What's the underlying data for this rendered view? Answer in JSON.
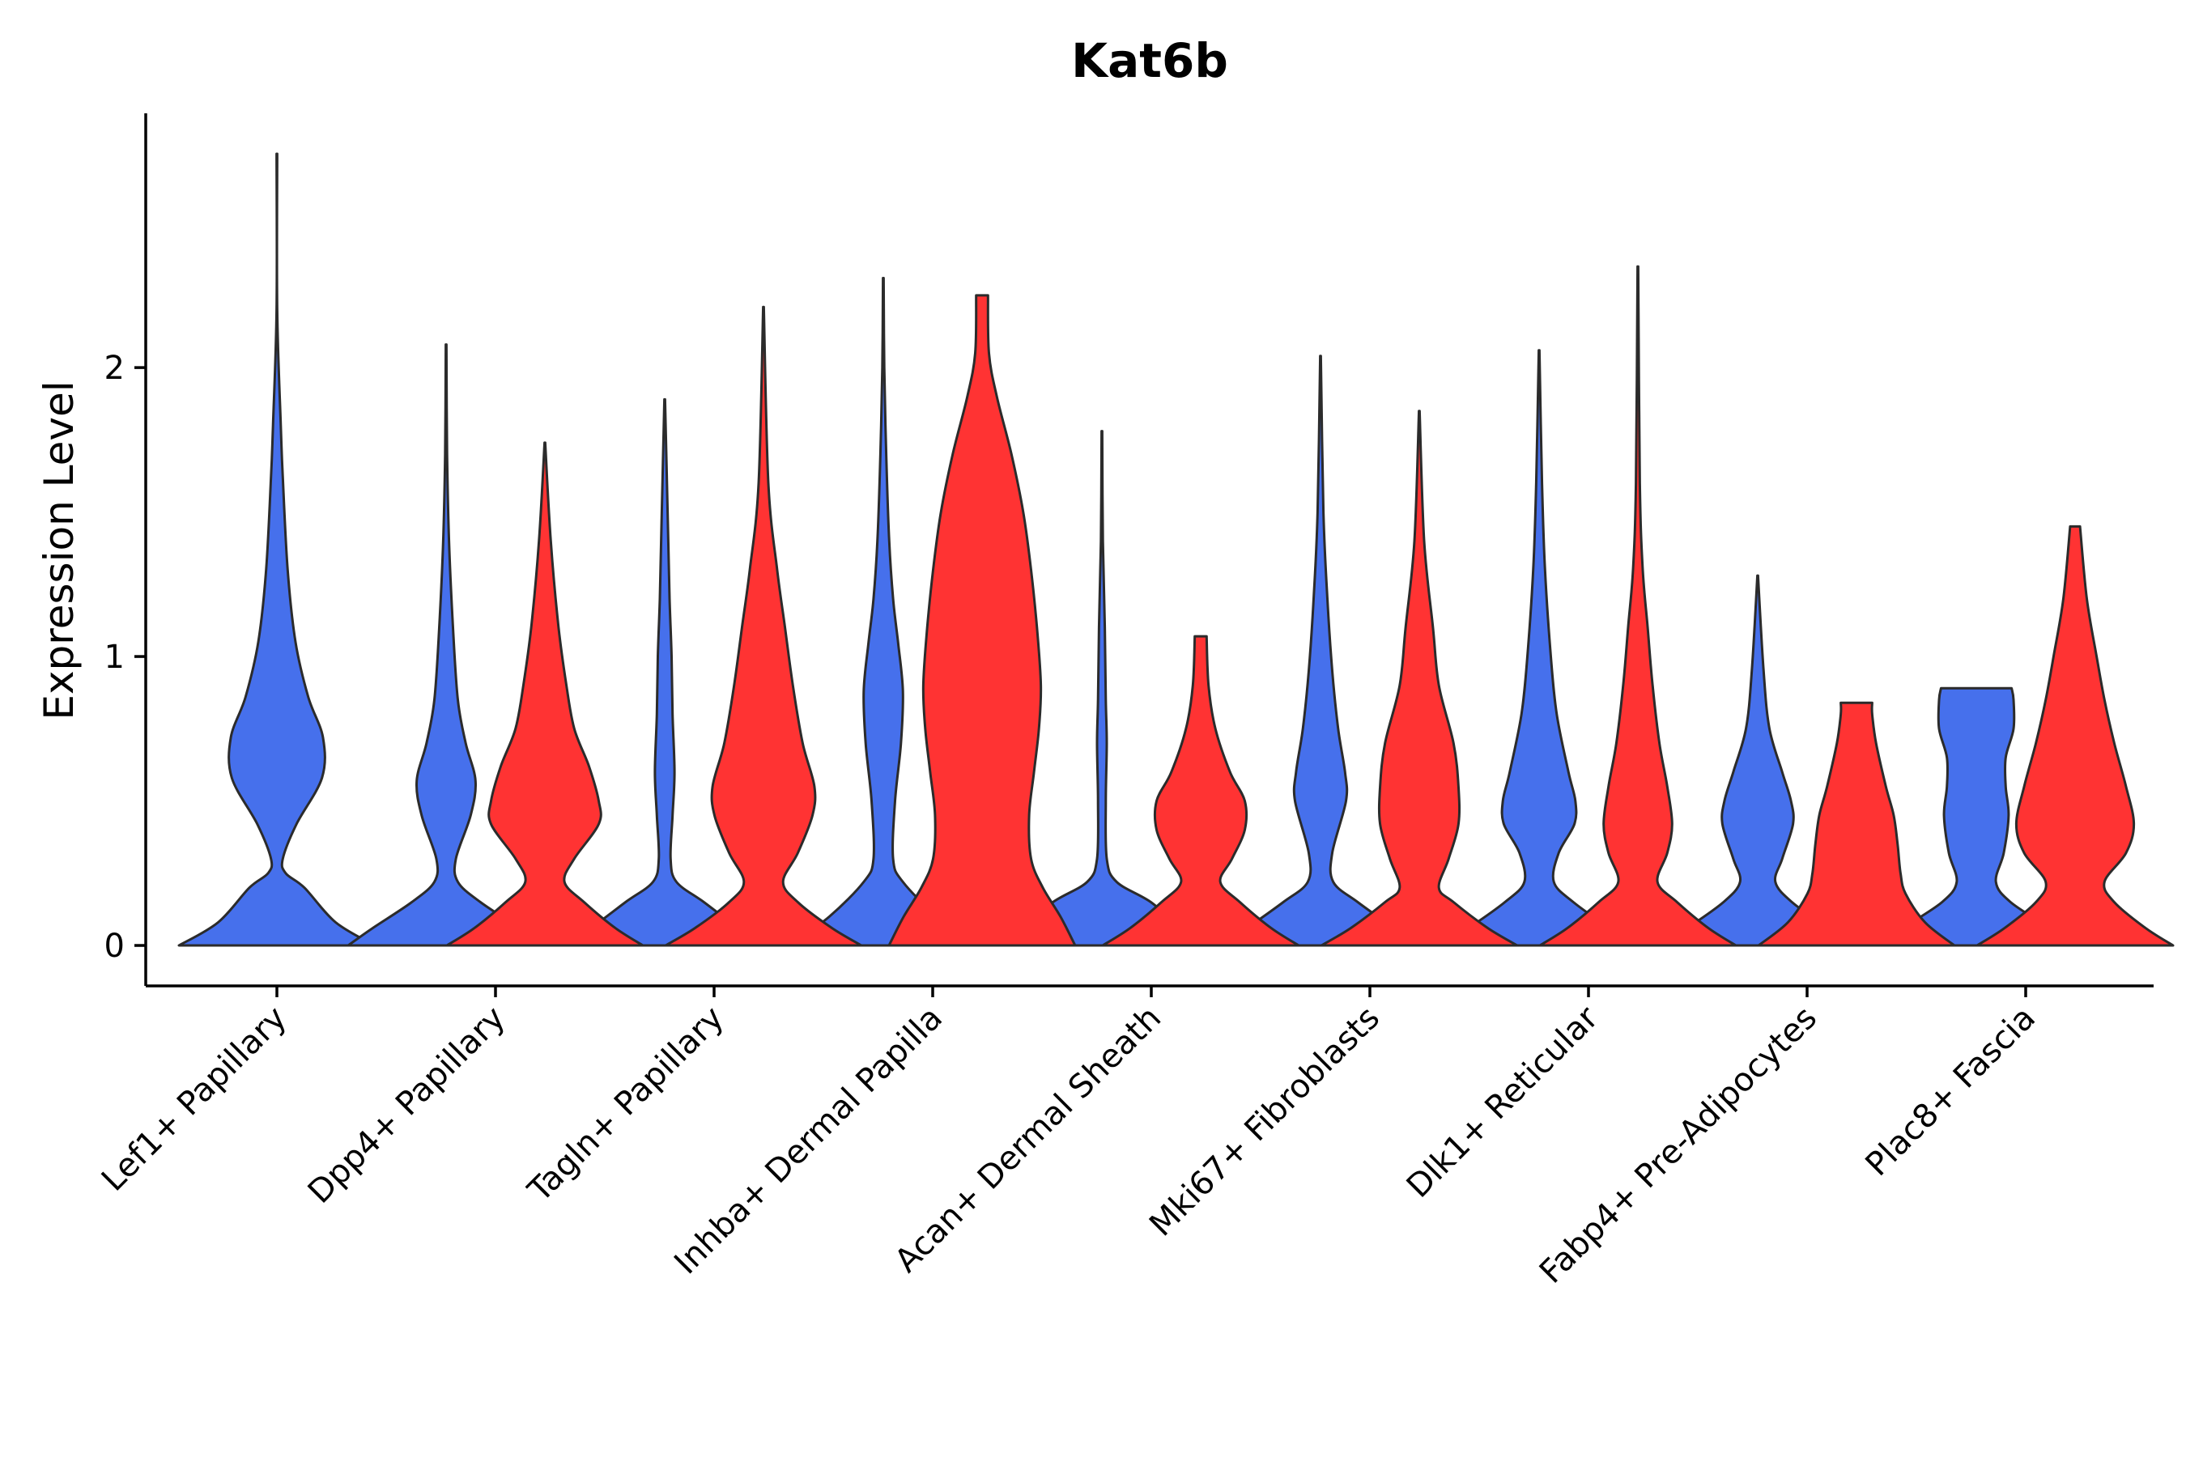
{
  "chart_data": {
    "type": "violin",
    "title": "Kat6b",
    "xlabel": "",
    "ylabel": "Expression Level",
    "ylim": [
      -0.14,
      2.88
    ],
    "yticks": [
      0,
      1,
      2
    ],
    "legend": "none",
    "grid": false,
    "categories": [
      "Lef1+ Papillary",
      "Dpp4+ Papillary",
      "Tagln+ Papillary",
      "Inhba+ Dermal Papilla",
      "Acan+ Dermal Sheath",
      "Mki67+ Fibroblasts",
      "Dlk1+ Reticular",
      "Fabp4+ Pre-Adipocytes",
      "Plac8+ Fascia"
    ],
    "series": [
      {
        "color": "#4670EC",
        "violins": [
          {
            "category": "Lef1+ Papillary",
            "max": 2.74,
            "profile": [
              [
                0,
                1.0
              ],
              [
                0.08,
                0.6
              ],
              [
                0.2,
                0.28
              ],
              [
                0.25,
                0.09
              ],
              [
                0.3,
                0.06
              ],
              [
                0.42,
                0.2
              ],
              [
                0.58,
                0.46
              ],
              [
                0.72,
                0.47
              ],
              [
                0.86,
                0.32
              ],
              [
                1.05,
                0.19
              ],
              [
                1.3,
                0.11
              ],
              [
                1.62,
                0.06
              ],
              [
                1.8,
                0.04
              ],
              [
                2.2,
                0.003
              ],
              [
                2.74,
                0.003
              ]
            ]
          },
          {
            "category": "Dpp4+ Papillary",
            "max": 2.08,
            "profile": [
              [
                0,
                1.0
              ],
              [
                0.06,
                0.75
              ],
              [
                0.15,
                0.35
              ],
              [
                0.22,
                0.12
              ],
              [
                0.3,
                0.1
              ],
              [
                0.45,
                0.25
              ],
              [
                0.57,
                0.3
              ],
              [
                0.7,
                0.2
              ],
              [
                0.85,
                0.12
              ],
              [
                1.1,
                0.07
              ],
              [
                1.4,
                0.03
              ],
              [
                1.7,
                0.01
              ],
              [
                2.08,
                0.003
              ]
            ]
          },
          {
            "category": "Tagln+ Papillary",
            "max": 1.89,
            "profile": [
              [
                0,
                1.0
              ],
              [
                0.06,
                0.75
              ],
              [
                0.15,
                0.4
              ],
              [
                0.22,
                0.12
              ],
              [
                0.3,
                0.06
              ],
              [
                0.45,
                0.08
              ],
              [
                0.6,
                0.1
              ],
              [
                0.8,
                0.08
              ],
              [
                1.0,
                0.07
              ],
              [
                1.2,
                0.05
              ],
              [
                1.5,
                0.03
              ],
              [
                1.89,
                0.003
              ]
            ]
          },
          {
            "category": "Inhba+ Dermal Papilla",
            "max": 2.31,
            "profile": [
              [
                0,
                0.95
              ],
              [
                0.1,
                0.55
              ],
              [
                0.22,
                0.2
              ],
              [
                0.3,
                0.1
              ],
              [
                0.5,
                0.12
              ],
              [
                0.7,
                0.18
              ],
              [
                0.88,
                0.2
              ],
              [
                1.05,
                0.15
              ],
              [
                1.2,
                0.1
              ],
              [
                1.4,
                0.06
              ],
              [
                1.7,
                0.03
              ],
              [
                2.0,
                0.01
              ],
              [
                2.31,
                0.003
              ]
            ]
          },
          {
            "category": "Acan+ Dermal Sheath",
            "max": 1.78,
            "profile": [
              [
                0,
                1.0
              ],
              [
                0.06,
                0.8
              ],
              [
                0.15,
                0.5
              ],
              [
                0.22,
                0.15
              ],
              [
                0.3,
                0.05
              ],
              [
                0.5,
                0.04
              ],
              [
                0.7,
                0.05
              ],
              [
                0.85,
                0.04
              ],
              [
                1.1,
                0.03
              ],
              [
                1.4,
                0.01
              ],
              [
                1.78,
                0.003
              ]
            ]
          },
          {
            "category": "Mki67+ Fibroblasts",
            "max": 2.04,
            "profile": [
              [
                0,
                1.0
              ],
              [
                0.06,
                0.75
              ],
              [
                0.15,
                0.38
              ],
              [
                0.22,
                0.13
              ],
              [
                0.32,
                0.12
              ],
              [
                0.5,
                0.26
              ],
              [
                0.6,
                0.25
              ],
              [
                0.75,
                0.18
              ],
              [
                0.95,
                0.12
              ],
              [
                1.2,
                0.07
              ],
              [
                1.5,
                0.03
              ],
              [
                2.04,
                0.003
              ]
            ]
          },
          {
            "category": "Dlk1+ Reticular",
            "max": 2.06,
            "profile": [
              [
                0,
                1.0
              ],
              [
                0.06,
                0.72
              ],
              [
                0.15,
                0.35
              ],
              [
                0.22,
                0.15
              ],
              [
                0.32,
                0.2
              ],
              [
                0.42,
                0.36
              ],
              [
                0.5,
                0.37
              ],
              [
                0.6,
                0.3
              ],
              [
                0.8,
                0.18
              ],
              [
                1.0,
                0.12
              ],
              [
                1.3,
                0.06
              ],
              [
                1.6,
                0.03
              ],
              [
                2.06,
                0.003
              ]
            ]
          },
          {
            "category": "Fabp4+ Pre-Adipocytes",
            "max": 1.28,
            "profile": [
              [
                0,
                1.0
              ],
              [
                0.06,
                0.72
              ],
              [
                0.15,
                0.35
              ],
              [
                0.22,
                0.18
              ],
              [
                0.3,
                0.25
              ],
              [
                0.42,
                0.36
              ],
              [
                0.5,
                0.34
              ],
              [
                0.6,
                0.25
              ],
              [
                0.75,
                0.12
              ],
              [
                0.95,
                0.06
              ],
              [
                1.28,
                0.003
              ]
            ]
          },
          {
            "category": "Plac8+ Fascia",
            "max": 0.89,
            "profile": [
              [
                0,
                1.0
              ],
              [
                0.06,
                0.75
              ],
              [
                0.15,
                0.35
              ],
              [
                0.22,
                0.2
              ],
              [
                0.32,
                0.28
              ],
              [
                0.45,
                0.33
              ],
              [
                0.55,
                0.3
              ],
              [
                0.65,
                0.3
              ],
              [
                0.75,
                0.38
              ],
              [
                0.85,
                0.38
              ],
              [
                0.89,
                0.36
              ]
            ]
          }
        ]
      },
      {
        "color": "#FF3333",
        "violins": [
          {
            "category": "Dpp4+ Papillary",
            "max": 1.74,
            "profile": [
              [
                0,
                1.0
              ],
              [
                0.06,
                0.72
              ],
              [
                0.15,
                0.4
              ],
              [
                0.22,
                0.2
              ],
              [
                0.3,
                0.3
              ],
              [
                0.42,
                0.55
              ],
              [
                0.5,
                0.55
              ],
              [
                0.62,
                0.45
              ],
              [
                0.75,
                0.3
              ],
              [
                0.9,
                0.22
              ],
              [
                1.1,
                0.14
              ],
              [
                1.4,
                0.06
              ],
              [
                1.74,
                0.003
              ]
            ]
          },
          {
            "category": "Tagln+ Papillary",
            "max": 2.21,
            "profile": [
              [
                0,
                1.0
              ],
              [
                0.06,
                0.7
              ],
              [
                0.15,
                0.35
              ],
              [
                0.22,
                0.2
              ],
              [
                0.32,
                0.35
              ],
              [
                0.45,
                0.5
              ],
              [
                0.55,
                0.52
              ],
              [
                0.7,
                0.4
              ],
              [
                0.9,
                0.3
              ],
              [
                1.1,
                0.22
              ],
              [
                1.3,
                0.14
              ],
              [
                1.6,
                0.05
              ],
              [
                2.21,
                0.003
              ]
            ]
          },
          {
            "category": "Inhba+ Dermal Papilla",
            "max": 2.25,
            "profile": [
              [
                0,
                0.95
              ],
              [
                0.1,
                0.8
              ],
              [
                0.2,
                0.62
              ],
              [
                0.3,
                0.5
              ],
              [
                0.45,
                0.48
              ],
              [
                0.6,
                0.53
              ],
              [
                0.75,
                0.58
              ],
              [
                0.9,
                0.6
              ],
              [
                1.1,
                0.56
              ],
              [
                1.3,
                0.5
              ],
              [
                1.5,
                0.42
              ],
              [
                1.7,
                0.3
              ],
              [
                1.9,
                0.15
              ],
              [
                2.05,
                0.07
              ],
              [
                2.25,
                0.06
              ]
            ]
          },
          {
            "category": "Acan+ Dermal Sheath",
            "max": 1.07,
            "profile": [
              [
                0,
                1.0
              ],
              [
                0.06,
                0.72
              ],
              [
                0.15,
                0.4
              ],
              [
                0.22,
                0.2
              ],
              [
                0.3,
                0.32
              ],
              [
                0.4,
                0.45
              ],
              [
                0.5,
                0.45
              ],
              [
                0.6,
                0.3
              ],
              [
                0.75,
                0.15
              ],
              [
                0.9,
                0.08
              ],
              [
                1.07,
                0.06
              ]
            ]
          },
          {
            "category": "Mki67+ Fibroblasts",
            "max": 1.85,
            "profile": [
              [
                0,
                1.0
              ],
              [
                0.06,
                0.7
              ],
              [
                0.15,
                0.35
              ],
              [
                0.2,
                0.2
              ],
              [
                0.3,
                0.3
              ],
              [
                0.42,
                0.4
              ],
              [
                0.55,
                0.4
              ],
              [
                0.7,
                0.35
              ],
              [
                0.9,
                0.2
              ],
              [
                1.1,
                0.14
              ],
              [
                1.4,
                0.05
              ],
              [
                1.85,
                0.003
              ]
            ]
          },
          {
            "category": "Dlk1+ Reticular",
            "max": 2.35,
            "profile": [
              [
                0,
                1.0
              ],
              [
                0.06,
                0.72
              ],
              [
                0.15,
                0.4
              ],
              [
                0.22,
                0.2
              ],
              [
                0.32,
                0.3
              ],
              [
                0.42,
                0.35
              ],
              [
                0.55,
                0.3
              ],
              [
                0.7,
                0.22
              ],
              [
                0.9,
                0.15
              ],
              [
                1.1,
                0.1
              ],
              [
                1.3,
                0.05
              ],
              [
                1.6,
                0.02
              ],
              [
                2.35,
                0.003
              ]
            ]
          },
          {
            "category": "Fabp4+ Pre-Adipocytes",
            "max": 0.84,
            "profile": [
              [
                0,
                1.0
              ],
              [
                0.08,
                0.7
              ],
              [
                0.18,
                0.5
              ],
              [
                0.25,
                0.45
              ],
              [
                0.35,
                0.42
              ],
              [
                0.45,
                0.38
              ],
              [
                0.55,
                0.3
              ],
              [
                0.7,
                0.2
              ],
              [
                0.8,
                0.16
              ],
              [
                0.84,
                0.16
              ]
            ]
          },
          {
            "category": "Plac8+ Fascia",
            "max": 1.45,
            "profile": [
              [
                0,
                1.0
              ],
              [
                0.06,
                0.72
              ],
              [
                0.15,
                0.4
              ],
              [
                0.22,
                0.3
              ],
              [
                0.32,
                0.52
              ],
              [
                0.42,
                0.6
              ],
              [
                0.55,
                0.52
              ],
              [
                0.7,
                0.4
              ],
              [
                0.85,
                0.3
              ],
              [
                1.0,
                0.22
              ],
              [
                1.2,
                0.12
              ],
              [
                1.45,
                0.05
              ]
            ]
          }
        ]
      }
    ]
  }
}
